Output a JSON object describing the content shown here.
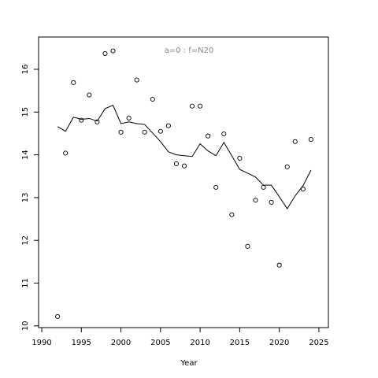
{
  "chart_data": {
    "type": "scatter",
    "annotation": "a=0  :  f=N20",
    "xlabel": "Year",
    "x": [
      1992,
      1993,
      1994,
      1995,
      1996,
      1997,
      1998,
      1999,
      2000,
      2001,
      2002,
      2003,
      2004,
      2005,
      2006,
      2007,
      2008,
      2009,
      2010,
      2011,
      2012,
      2013,
      2014,
      2015,
      2016,
      2017,
      2018,
      2019,
      2020,
      2021,
      2022,
      2023,
      2024
    ],
    "series": [
      {
        "style": "points",
        "color": "#000000",
        "values": [
          10.22,
          14.04,
          15.69,
          14.81,
          15.4,
          14.77,
          16.37,
          16.43,
          14.53,
          14.86,
          15.75,
          14.53,
          15.3,
          14.55,
          14.68,
          13.79,
          13.74,
          15.14,
          15.14,
          14.44,
          13.24,
          14.49,
          12.6,
          13.92,
          11.86,
          12.94,
          13.24,
          12.89,
          11.42,
          13.72,
          14.31,
          13.2,
          14.36
        ]
      },
      {
        "style": "line",
        "color": "#000000",
        "values": [
          14.66,
          14.55,
          14.88,
          14.83,
          14.85,
          14.79,
          15.08,
          15.16,
          14.73,
          14.77,
          14.73,
          14.71,
          14.51,
          14.31,
          14.07,
          14.0,
          13.98,
          13.96,
          14.26,
          14.09,
          13.98,
          14.29,
          13.98,
          13.66,
          13.57,
          13.48,
          13.29,
          13.29,
          13.02,
          12.74,
          13.04,
          13.28,
          13.64
        ]
      }
    ],
    "xlim": [
      1989.6,
      2026.2
    ],
    "xticks": [
      1990,
      1995,
      2000,
      2005,
      2010,
      2015,
      2020,
      2025
    ],
    "ylim": [
      9.96,
      16.755
    ],
    "yticks": [
      10,
      11,
      12,
      13,
      14,
      15,
      16
    ]
  }
}
